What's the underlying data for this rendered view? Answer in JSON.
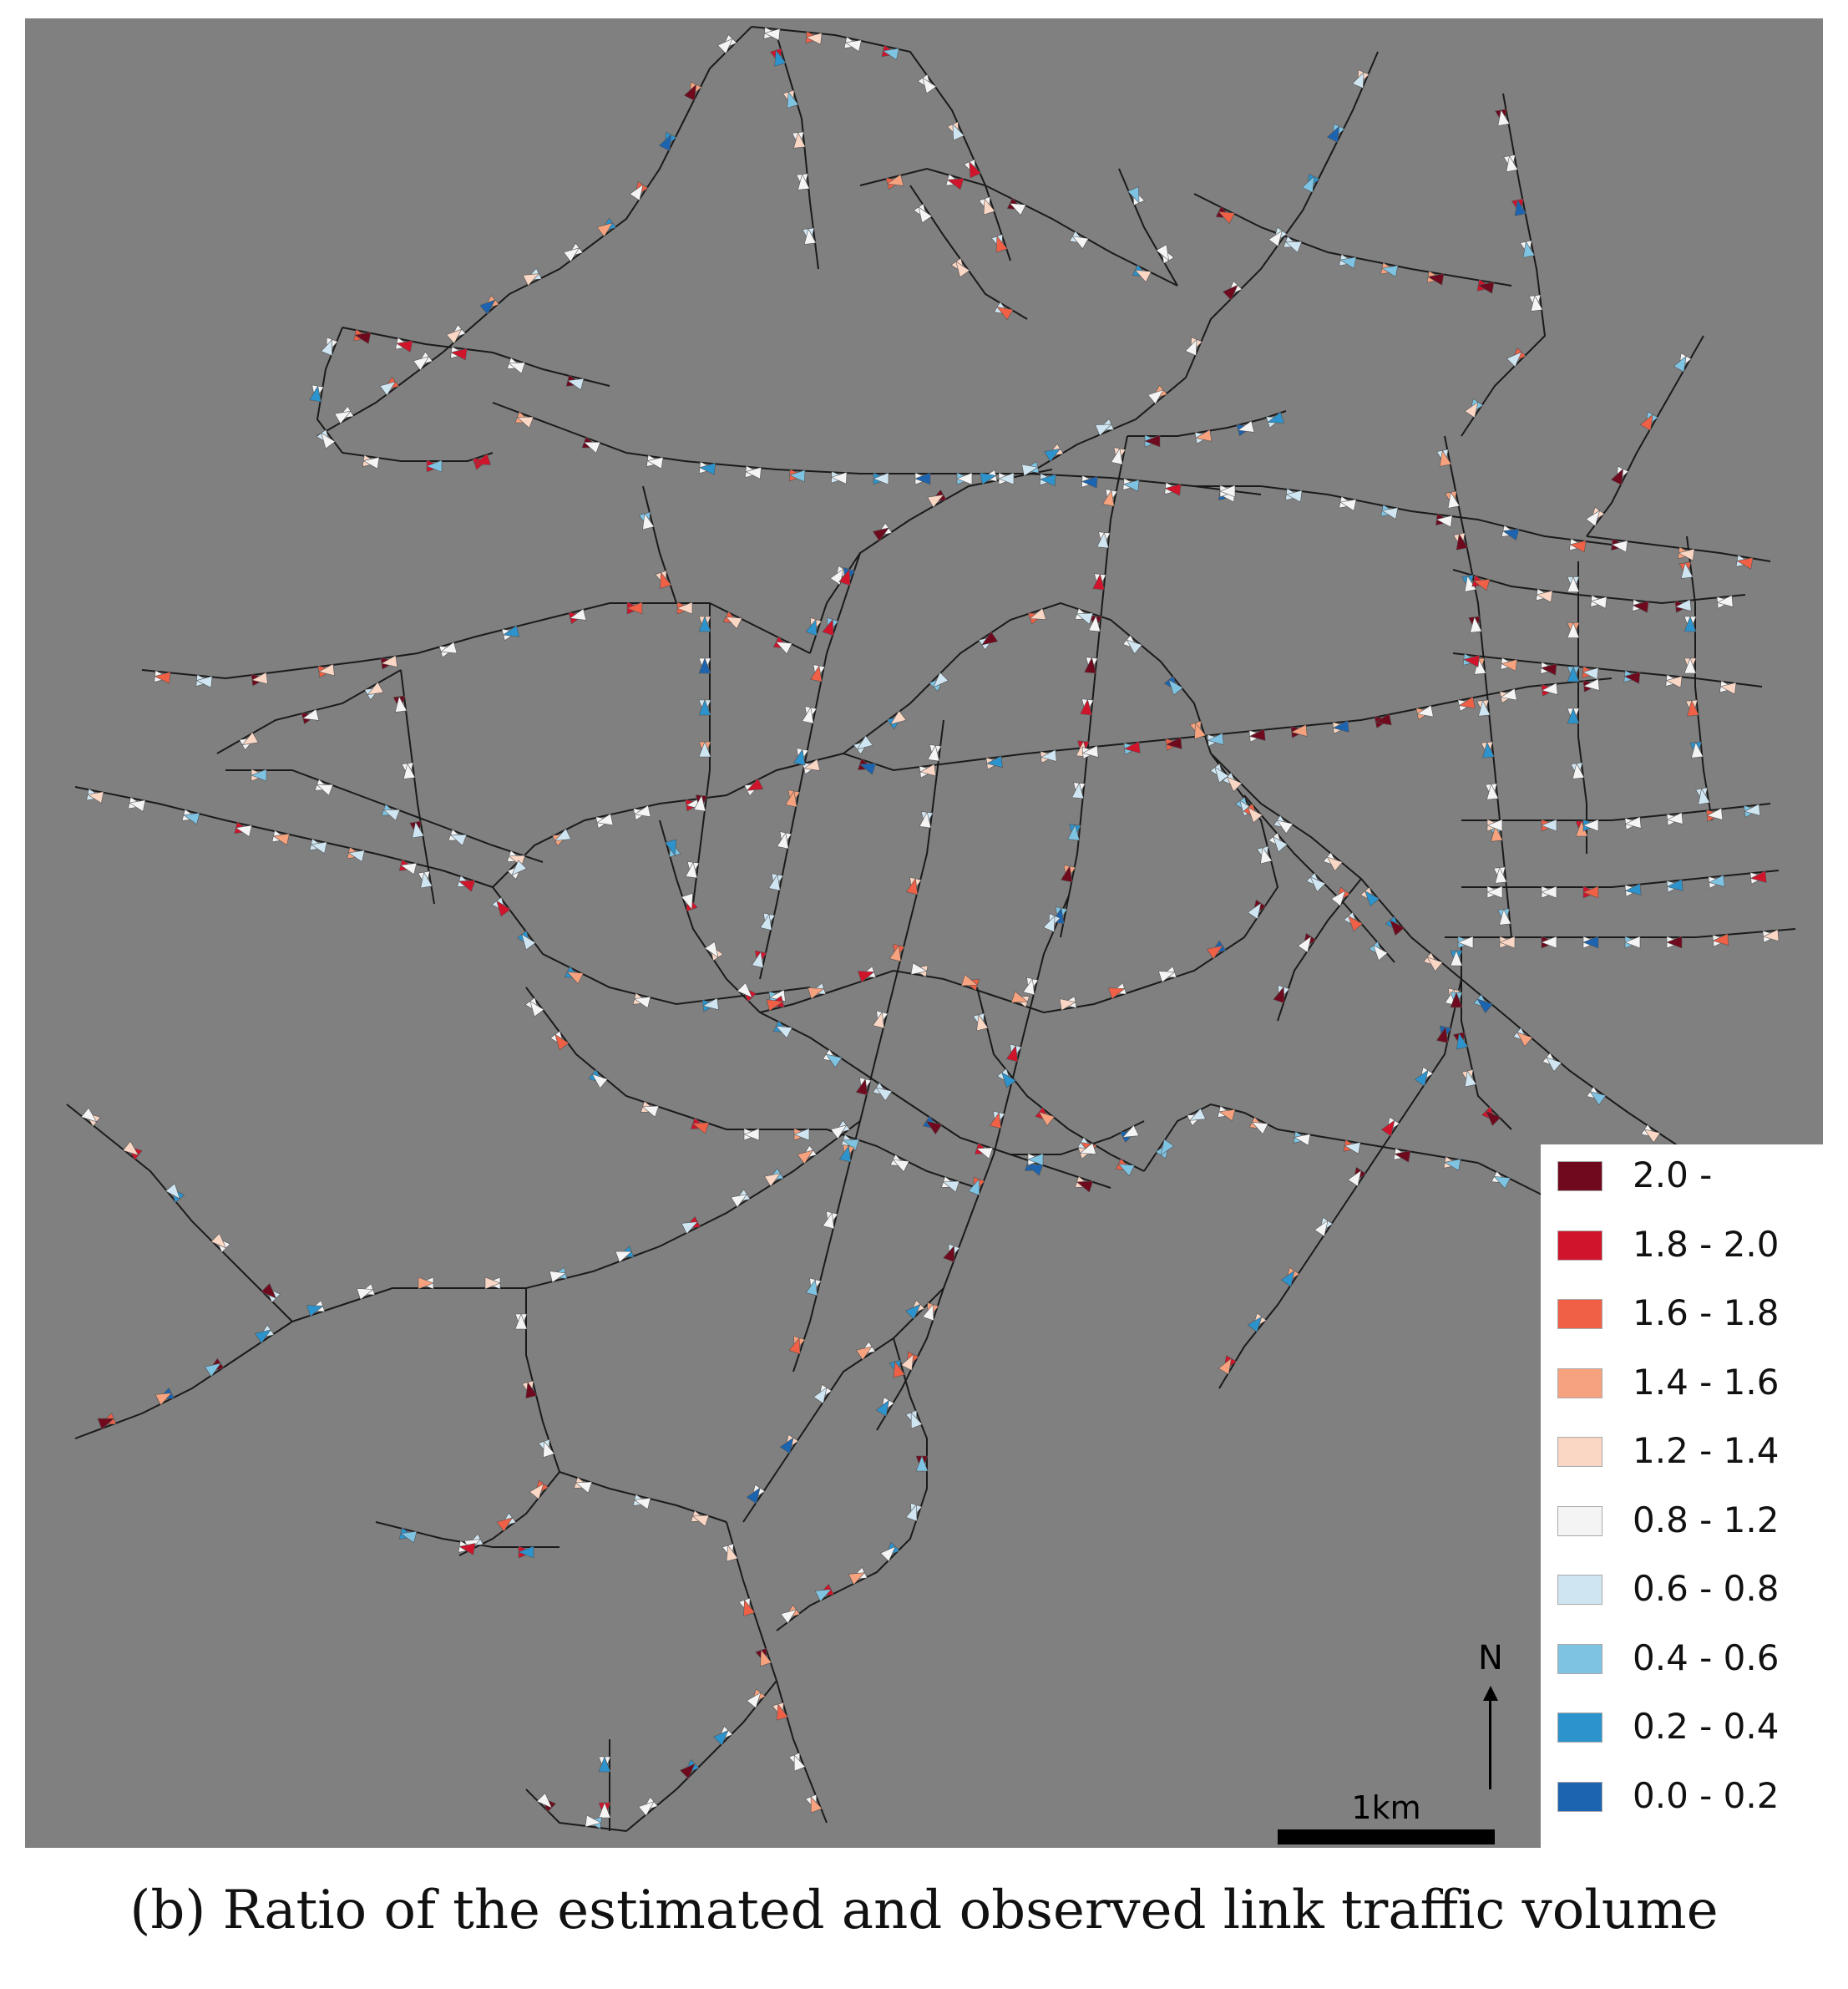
{
  "legend": {
    "items": [
      {
        "label": "2.0 -",
        "color": "#6f0a1e"
      },
      {
        "label": "1.8 - 2.0",
        "color": "#d0142c"
      },
      {
        "label": "1.6 - 1.8",
        "color": "#ef6046"
      },
      {
        "label": "1.4 - 1.6",
        "color": "#f7a27e"
      },
      {
        "label": "1.2 - 1.4",
        "color": "#fad6c4"
      },
      {
        "label": "0.8 - 1.2",
        "color": "#f4f4f4"
      },
      {
        "label": "0.6 - 0.8",
        "color": "#cfe6f2"
      },
      {
        "label": "0.4 - 0.6",
        "color": "#7fc3e2"
      },
      {
        "label": "0.2 - 0.4",
        "color": "#2d93cc"
      },
      {
        "label": "0.0 - 0.2",
        "color": "#1c64b0"
      }
    ]
  },
  "map": {
    "background_color": "#808080",
    "road_color": "#1a1a1a",
    "north_label": "N",
    "north_icon": "north-arrow-icon",
    "scale_label": "1km"
  },
  "caption": "(b) Ratio of the estimated and observed link traffic volume"
}
